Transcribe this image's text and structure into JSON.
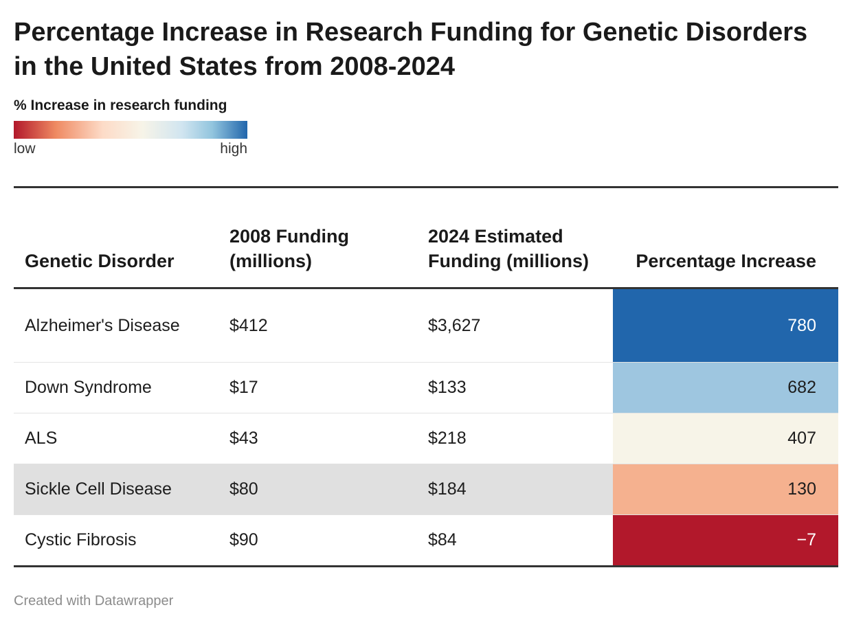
{
  "title": "Percentage Increase in Research Funding for Genetic Disorders in the United States from 2008-2024",
  "legend": {
    "title": "% Increase in research funding",
    "low_label": "low",
    "high_label": "high",
    "colors": [
      "#b2182b",
      "#ef8a62",
      "#fddbc7",
      "#f7f4e8",
      "#d1e5f0",
      "#92c5de",
      "#2166ac"
    ]
  },
  "footer": "Created with Datawrapper",
  "chart_data": {
    "type": "table",
    "columns": [
      "Genetic Disorder",
      "2008 Funding (millions)",
      "2024 Estimated Funding (millions)",
      "Percentage Increase"
    ],
    "rows": [
      {
        "disorder": "Alzheimer's Disease",
        "funding_2008": "$412",
        "funding_2024": "$3,627",
        "pct_increase": "780",
        "color": "#2166ac",
        "text_color": "#ffffff"
      },
      {
        "disorder": "Down Syndrome",
        "funding_2008": "$17",
        "funding_2024": "$133",
        "pct_increase": "682",
        "color": "#9ec6e0",
        "text_color": "#1d1d1d"
      },
      {
        "disorder": "ALS",
        "funding_2008": "$43",
        "funding_2024": "$218",
        "pct_increase": "407",
        "color": "#f7f4e8",
        "text_color": "#1d1d1d"
      },
      {
        "disorder": "Sickle Cell Disease",
        "funding_2008": "$80",
        "funding_2024": "$184",
        "pct_increase": "130",
        "color": "#f5b18f",
        "text_color": "#1d1d1d"
      },
      {
        "disorder": "Cystic Fibrosis",
        "funding_2008": "$90",
        "funding_2024": "$84",
        "pct_increase": "−7",
        "color": "#b2182b",
        "text_color": "#ffffff"
      }
    ]
  }
}
